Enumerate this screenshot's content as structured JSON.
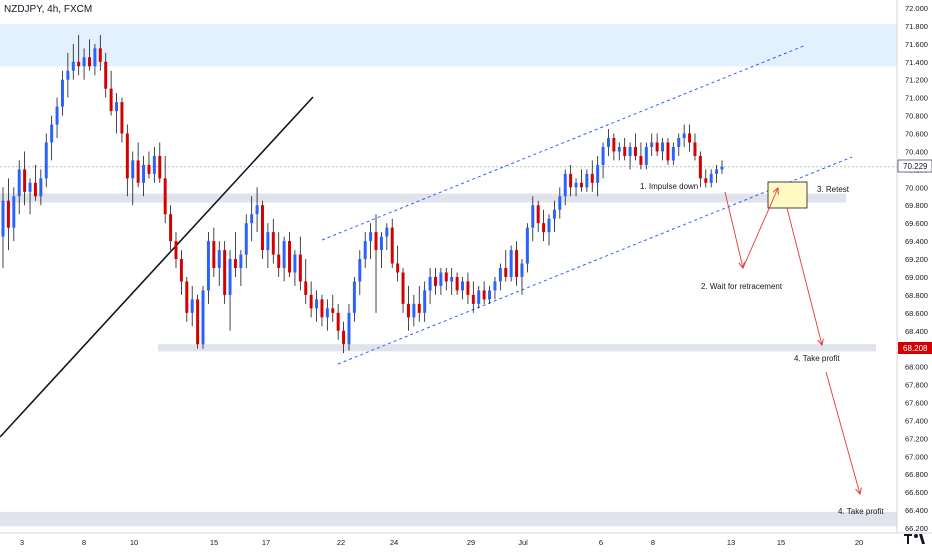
{
  "header": {
    "symbol_line": "NZDJPY, 4h, FXCM"
  },
  "colors": {
    "up": "#2962ff",
    "down": "#d50000",
    "wick": "#131722",
    "channel": "#2962ff",
    "arrow": "#e53935",
    "zone_band": "#e0e3eb",
    "top_zone": "#e3f0fd",
    "retest_box_fill": "#fff9c4",
    "current_price_bg": "#ffffff",
    "support_price_bg": "#d50000"
  },
  "chart_data": {
    "type": "candlestick",
    "symbol": "NZDJPY",
    "timeframe": "4h",
    "source": "FXCM",
    "ylim": [
      66.1,
      72.0
    ],
    "y_ticks": [
      "72.000",
      "71.800",
      "71.600",
      "71.400",
      "71.200",
      "71.000",
      "70.800",
      "70.600",
      "70.400",
      "70.200",
      "70.000",
      "69.800",
      "69.600",
      "69.400",
      "69.200",
      "69.000",
      "68.800",
      "68.600",
      "68.400",
      "68.200",
      "68.000",
      "67.800",
      "67.600",
      "67.400",
      "67.200",
      "67.000",
      "66.800",
      "66.600",
      "66.400",
      "66.200"
    ],
    "x_ticks": [
      "3",
      "8",
      "10",
      "15",
      "17",
      "22",
      "24",
      "29",
      "Jul",
      "6",
      "8",
      "13",
      "15",
      "20"
    ],
    "price_labels": {
      "current": "70.229",
      "support": "68.208"
    },
    "candles": [
      {
        "o": 69.45,
        "h": 70.0,
        "l": 69.1,
        "c": 69.85
      },
      {
        "o": 69.85,
        "h": 70.1,
        "l": 69.3,
        "c": 69.55
      },
      {
        "o": 69.55,
        "h": 70.0,
        "l": 69.4,
        "c": 69.9
      },
      {
        "o": 69.9,
        "h": 70.3,
        "l": 69.7,
        "c": 70.2
      },
      {
        "o": 70.2,
        "h": 70.4,
        "l": 69.8,
        "c": 69.95
      },
      {
        "o": 69.95,
        "h": 70.1,
        "l": 69.7,
        "c": 70.05
      },
      {
        "o": 70.05,
        "h": 70.25,
        "l": 69.85,
        "c": 69.9
      },
      {
        "o": 69.9,
        "h": 70.2,
        "l": 69.8,
        "c": 70.1
      },
      {
        "o": 70.1,
        "h": 70.6,
        "l": 70.0,
        "c": 70.5
      },
      {
        "o": 70.5,
        "h": 70.8,
        "l": 70.3,
        "c": 70.7
      },
      {
        "o": 70.7,
        "h": 71.0,
        "l": 70.55,
        "c": 70.9
      },
      {
        "o": 70.9,
        "h": 71.3,
        "l": 70.8,
        "c": 71.2
      },
      {
        "o": 71.2,
        "h": 71.5,
        "l": 71.0,
        "c": 71.3
      },
      {
        "o": 71.3,
        "h": 71.6,
        "l": 71.2,
        "c": 71.4
      },
      {
        "o": 71.4,
        "h": 71.7,
        "l": 71.25,
        "c": 71.35
      },
      {
        "o": 71.35,
        "h": 71.55,
        "l": 71.2,
        "c": 71.45
      },
      {
        "o": 71.45,
        "h": 71.65,
        "l": 71.3,
        "c": 71.35
      },
      {
        "o": 71.35,
        "h": 71.6,
        "l": 71.25,
        "c": 71.55
      },
      {
        "o": 71.55,
        "h": 71.7,
        "l": 71.3,
        "c": 71.4
      },
      {
        "o": 71.4,
        "h": 71.5,
        "l": 71.0,
        "c": 71.1
      },
      {
        "o": 71.1,
        "h": 71.3,
        "l": 70.8,
        "c": 70.85
      },
      {
        "o": 70.85,
        "h": 71.05,
        "l": 70.6,
        "c": 70.95
      },
      {
        "o": 70.95,
        "h": 71.0,
        "l": 70.5,
        "c": 70.6
      },
      {
        "o": 70.6,
        "h": 70.7,
        "l": 69.9,
        "c": 70.1
      },
      {
        "o": 70.1,
        "h": 70.4,
        "l": 69.8,
        "c": 70.3
      },
      {
        "o": 70.3,
        "h": 70.5,
        "l": 70.0,
        "c": 70.05
      },
      {
        "o": 70.05,
        "h": 70.35,
        "l": 69.9,
        "c": 70.25
      },
      {
        "o": 70.25,
        "h": 70.4,
        "l": 70.1,
        "c": 70.15
      },
      {
        "o": 70.15,
        "h": 70.45,
        "l": 70.05,
        "c": 70.35
      },
      {
        "o": 70.35,
        "h": 70.5,
        "l": 70.05,
        "c": 70.1
      },
      {
        "o": 70.1,
        "h": 70.35,
        "l": 69.6,
        "c": 69.7
      },
      {
        "o": 69.7,
        "h": 69.8,
        "l": 69.3,
        "c": 69.4
      },
      {
        "o": 69.4,
        "h": 69.5,
        "l": 69.1,
        "c": 69.2
      },
      {
        "o": 69.2,
        "h": 69.3,
        "l": 68.8,
        "c": 68.95
      },
      {
        "o": 68.95,
        "h": 69.0,
        "l": 68.5,
        "c": 68.6
      },
      {
        "o": 68.6,
        "h": 68.9,
        "l": 68.45,
        "c": 68.75
      },
      {
        "o": 68.75,
        "h": 68.8,
        "l": 68.2,
        "c": 68.25
      },
      {
        "o": 68.25,
        "h": 68.9,
        "l": 68.2,
        "c": 68.85
      },
      {
        "o": 68.85,
        "h": 69.5,
        "l": 68.7,
        "c": 69.4
      },
      {
        "o": 69.4,
        "h": 69.55,
        "l": 69.0,
        "c": 69.1
      },
      {
        "o": 69.1,
        "h": 69.4,
        "l": 68.9,
        "c": 69.3
      },
      {
        "o": 69.3,
        "h": 69.4,
        "l": 68.7,
        "c": 68.8
      },
      {
        "o": 68.8,
        "h": 69.3,
        "l": 68.4,
        "c": 69.2
      },
      {
        "o": 69.2,
        "h": 69.5,
        "l": 69.0,
        "c": 69.1
      },
      {
        "o": 69.1,
        "h": 69.3,
        "l": 68.9,
        "c": 69.25
      },
      {
        "o": 69.25,
        "h": 69.7,
        "l": 69.1,
        "c": 69.6
      },
      {
        "o": 69.6,
        "h": 69.9,
        "l": 69.4,
        "c": 69.7
      },
      {
        "o": 69.7,
        "h": 70.0,
        "l": 69.5,
        "c": 69.8
      },
      {
        "o": 69.8,
        "h": 69.85,
        "l": 69.2,
        "c": 69.3
      },
      {
        "o": 69.3,
        "h": 69.6,
        "l": 69.1,
        "c": 69.5
      },
      {
        "o": 69.5,
        "h": 69.65,
        "l": 69.15,
        "c": 69.25
      },
      {
        "o": 69.25,
        "h": 69.5,
        "l": 69.0,
        "c": 69.1
      },
      {
        "o": 69.1,
        "h": 69.45,
        "l": 68.95,
        "c": 69.4
      },
      {
        "o": 69.4,
        "h": 69.5,
        "l": 69.0,
        "c": 69.05
      },
      {
        "o": 69.05,
        "h": 69.3,
        "l": 68.9,
        "c": 69.25
      },
      {
        "o": 69.25,
        "h": 69.45,
        "l": 68.85,
        "c": 68.95
      },
      {
        "o": 68.95,
        "h": 69.2,
        "l": 68.7,
        "c": 68.8
      },
      {
        "o": 68.8,
        "h": 68.95,
        "l": 68.55,
        "c": 68.65
      },
      {
        "o": 68.65,
        "h": 68.85,
        "l": 68.5,
        "c": 68.75
      },
      {
        "o": 68.75,
        "h": 68.8,
        "l": 68.45,
        "c": 68.55
      },
      {
        "o": 68.55,
        "h": 68.75,
        "l": 68.4,
        "c": 68.65
      },
      {
        "o": 68.65,
        "h": 68.8,
        "l": 68.5,
        "c": 68.6
      },
      {
        "o": 68.6,
        "h": 68.7,
        "l": 68.3,
        "c": 68.4
      },
      {
        "o": 68.4,
        "h": 68.5,
        "l": 68.15,
        "c": 68.25
      },
      {
        "o": 68.25,
        "h": 68.7,
        "l": 68.18,
        "c": 68.6
      },
      {
        "o": 68.6,
        "h": 69.0,
        "l": 68.5,
        "c": 68.95
      },
      {
        "o": 68.95,
        "h": 69.3,
        "l": 68.8,
        "c": 69.2
      },
      {
        "o": 69.2,
        "h": 69.5,
        "l": 69.1,
        "c": 69.4
      },
      {
        "o": 69.4,
        "h": 69.6,
        "l": 69.2,
        "c": 69.5
      },
      {
        "o": 69.5,
        "h": 69.7,
        "l": 68.6,
        "c": 69.3
      },
      {
        "o": 69.3,
        "h": 69.5,
        "l": 69.1,
        "c": 69.45
      },
      {
        "o": 69.45,
        "h": 69.6,
        "l": 69.3,
        "c": 69.55
      },
      {
        "o": 69.55,
        "h": 69.65,
        "l": 69.1,
        "c": 69.15
      },
      {
        "o": 69.15,
        "h": 69.35,
        "l": 68.95,
        "c": 69.05
      },
      {
        "o": 69.05,
        "h": 69.1,
        "l": 68.6,
        "c": 68.7
      },
      {
        "o": 68.7,
        "h": 68.9,
        "l": 68.4,
        "c": 68.55
      },
      {
        "o": 68.55,
        "h": 68.8,
        "l": 68.45,
        "c": 68.7
      },
      {
        "o": 68.7,
        "h": 68.9,
        "l": 68.5,
        "c": 68.6
      },
      {
        "o": 68.6,
        "h": 68.95,
        "l": 68.5,
        "c": 68.85
      },
      {
        "o": 68.85,
        "h": 69.1,
        "l": 68.7,
        "c": 69.0
      },
      {
        "o": 69.0,
        "h": 69.1,
        "l": 68.8,
        "c": 68.9
      },
      {
        "o": 68.9,
        "h": 69.1,
        "l": 68.8,
        "c": 69.05
      },
      {
        "o": 69.05,
        "h": 69.1,
        "l": 68.85,
        "c": 68.95
      },
      {
        "o": 68.95,
        "h": 69.1,
        "l": 68.8,
        "c": 69.0
      },
      {
        "o": 69.0,
        "h": 69.05,
        "l": 68.8,
        "c": 68.85
      },
      {
        "o": 68.85,
        "h": 69.0,
        "l": 68.75,
        "c": 68.95
      },
      {
        "o": 68.95,
        "h": 69.05,
        "l": 68.7,
        "c": 68.8
      },
      {
        "o": 68.8,
        "h": 68.95,
        "l": 68.6,
        "c": 68.7
      },
      {
        "o": 68.7,
        "h": 68.9,
        "l": 68.65,
        "c": 68.85
      },
      {
        "o": 68.85,
        "h": 68.95,
        "l": 68.7,
        "c": 68.75
      },
      {
        "o": 68.75,
        "h": 68.9,
        "l": 68.7,
        "c": 68.85
      },
      {
        "o": 68.85,
        "h": 69.0,
        "l": 68.75,
        "c": 68.95
      },
      {
        "o": 68.95,
        "h": 69.15,
        "l": 68.85,
        "c": 69.1
      },
      {
        "o": 69.1,
        "h": 69.3,
        "l": 68.95,
        "c": 69.0
      },
      {
        "o": 69.0,
        "h": 69.35,
        "l": 68.95,
        "c": 69.3
      },
      {
        "o": 69.3,
        "h": 69.4,
        "l": 68.9,
        "c": 69.0
      },
      {
        "o": 69.0,
        "h": 69.2,
        "l": 68.8,
        "c": 69.15
      },
      {
        "o": 69.15,
        "h": 69.6,
        "l": 69.05,
        "c": 69.55
      },
      {
        "o": 69.55,
        "h": 69.9,
        "l": 69.4,
        "c": 69.8
      },
      {
        "o": 69.8,
        "h": 69.85,
        "l": 69.5,
        "c": 69.6
      },
      {
        "o": 69.6,
        "h": 69.75,
        "l": 69.4,
        "c": 69.5
      },
      {
        "o": 69.5,
        "h": 69.7,
        "l": 69.35,
        "c": 69.65
      },
      {
        "o": 69.65,
        "h": 69.85,
        "l": 69.5,
        "c": 69.75
      },
      {
        "o": 69.75,
        "h": 70.0,
        "l": 69.65,
        "c": 69.9
      },
      {
        "o": 69.9,
        "h": 70.2,
        "l": 69.8,
        "c": 70.15
      },
      {
        "o": 70.15,
        "h": 70.25,
        "l": 69.9,
        "c": 70.0
      },
      {
        "o": 70.0,
        "h": 70.1,
        "l": 69.9,
        "c": 70.05
      },
      {
        "o": 70.05,
        "h": 70.2,
        "l": 69.95,
        "c": 70.0
      },
      {
        "o": 70.0,
        "h": 70.2,
        "l": 69.95,
        "c": 70.15
      },
      {
        "o": 70.15,
        "h": 70.3,
        "l": 69.95,
        "c": 70.05
      },
      {
        "o": 70.05,
        "h": 70.35,
        "l": 69.9,
        "c": 70.25
      },
      {
        "o": 70.25,
        "h": 70.5,
        "l": 70.1,
        "c": 70.45
      },
      {
        "o": 70.45,
        "h": 70.65,
        "l": 70.35,
        "c": 70.55
      },
      {
        "o": 70.55,
        "h": 70.6,
        "l": 70.3,
        "c": 70.4
      },
      {
        "o": 70.4,
        "h": 70.5,
        "l": 70.3,
        "c": 70.45
      },
      {
        "o": 70.45,
        "h": 70.55,
        "l": 70.3,
        "c": 70.35
      },
      {
        "o": 70.35,
        "h": 70.5,
        "l": 70.2,
        "c": 70.45
      },
      {
        "o": 70.45,
        "h": 70.6,
        "l": 70.3,
        "c": 70.35
      },
      {
        "o": 70.35,
        "h": 70.5,
        "l": 70.2,
        "c": 70.25
      },
      {
        "o": 70.25,
        "h": 70.5,
        "l": 70.2,
        "c": 70.45
      },
      {
        "o": 70.45,
        "h": 70.6,
        "l": 70.35,
        "c": 70.5
      },
      {
        "o": 70.5,
        "h": 70.6,
        "l": 70.35,
        "c": 70.4
      },
      {
        "o": 70.4,
        "h": 70.55,
        "l": 70.3,
        "c": 70.5
      },
      {
        "o": 70.5,
        "h": 70.55,
        "l": 70.25,
        "c": 70.3
      },
      {
        "o": 70.3,
        "h": 70.5,
        "l": 70.25,
        "c": 70.45
      },
      {
        "o": 70.45,
        "h": 70.6,
        "l": 70.35,
        "c": 70.55
      },
      {
        "o": 70.55,
        "h": 70.7,
        "l": 70.45,
        "c": 70.6
      },
      {
        "o": 70.6,
        "h": 70.7,
        "l": 70.4,
        "c": 70.5
      },
      {
        "o": 70.5,
        "h": 70.6,
        "l": 70.3,
        "c": 70.35
      },
      {
        "o": 70.35,
        "h": 70.4,
        "l": 70.0,
        "c": 70.1
      },
      {
        "o": 70.1,
        "h": 70.2,
        "l": 70.0,
        "c": 70.05
      },
      {
        "o": 70.05,
        "h": 70.2,
        "l": 70.0,
        "c": 70.15
      },
      {
        "o": 70.15,
        "h": 70.25,
        "l": 70.05,
        "c": 70.2
      },
      {
        "o": 70.2,
        "h": 70.3,
        "l": 70.15,
        "c": 70.23
      }
    ],
    "zones": [
      {
        "name": "top-supply-zone",
        "y_from": 71.35,
        "y_to": 71.82
      },
      {
        "name": "mid-level-band",
        "y_from": 69.83,
        "y_to": 69.93
      },
      {
        "name": "support-band",
        "y_from": 68.17,
        "y_to": 68.25
      },
      {
        "name": "bottom-band",
        "y_from": 66.22,
        "y_to": 66.38
      }
    ],
    "annotations": [
      {
        "text": "1. Impulse down"
      },
      {
        "text": "2. Wait for retracement"
      },
      {
        "text": "3. Retest"
      },
      {
        "text": "4. Take profit"
      },
      {
        "text": "4. Take profit"
      }
    ]
  }
}
